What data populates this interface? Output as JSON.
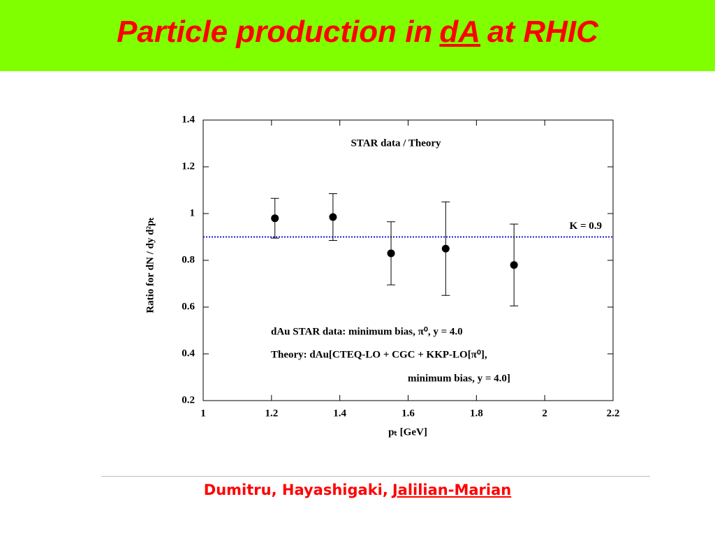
{
  "header": {
    "title_start": "Particle production in",
    "title_link": "dA",
    "title_end": "at RHIC"
  },
  "chart_data": {
    "type": "scatter",
    "title": "STAR data / Theory",
    "x_label": "pₜ [GeV]",
    "y_label": "Ratio for dN / dy d²pₜ",
    "x": [
      1.21,
      1.38,
      1.55,
      1.71,
      1.91
    ],
    "values": [
      0.98,
      0.985,
      0.83,
      0.85,
      0.78
    ],
    "errors": [
      0.085,
      0.1,
      0.135,
      0.2,
      0.175
    ],
    "color": "#000000",
    "xlim": [
      1,
      2.2
    ],
    "xticks": [
      1,
      1.2,
      1.4,
      1.6,
      1.8,
      2,
      2.2
    ],
    "ylim": [
      0.2,
      1.4
    ],
    "yticks": [
      0.2,
      0.4,
      0.6,
      0.8,
      1,
      1.2,
      1.4
    ],
    "reference_line": {
      "value": 0.9,
      "label": "K = 0.9",
      "color": "#1a1acc"
    },
    "annotations": [
      "dAu STAR data: minimum bias, π⁰, y = 4.0",
      "Theory: dAu[CTEQ-LO + CGC + KKP-LO[π⁰],",
      "minimum bias, y = 4.0]"
    ]
  },
  "footer": {
    "authors": "Dumitru, Hayashigaki,",
    "link": "Jalilian-Marian"
  }
}
